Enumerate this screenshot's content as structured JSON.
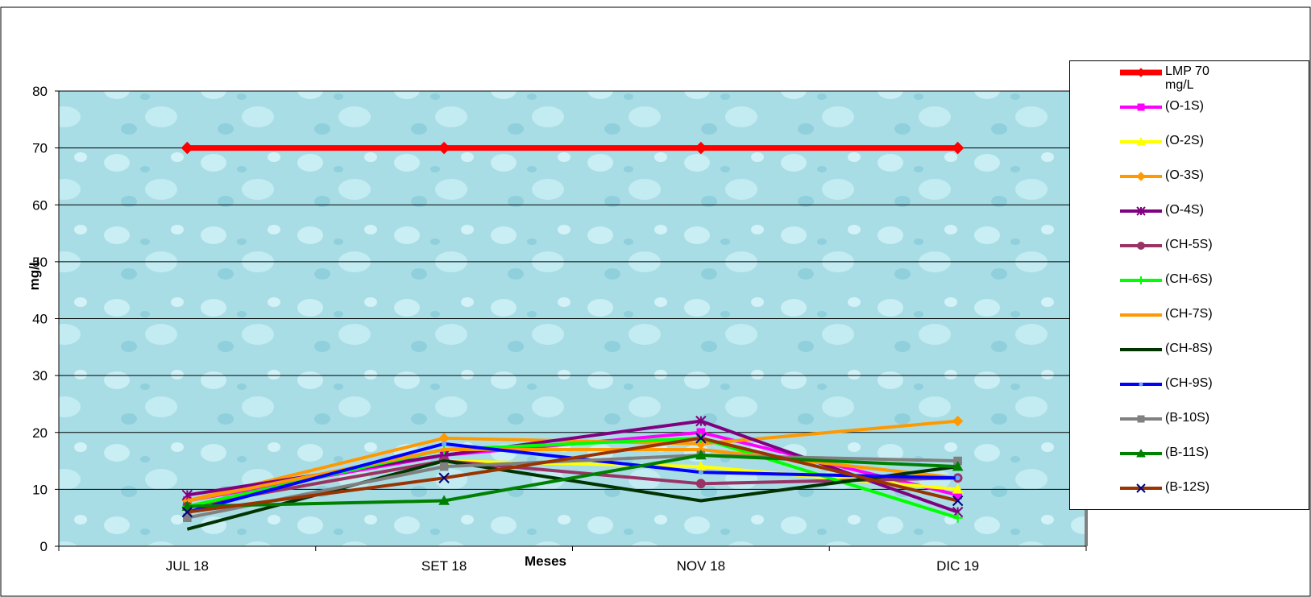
{
  "chart_data": {
    "type": "line",
    "x_label": "Meses",
    "y_label": "mg/L",
    "categories": [
      "JUL 18",
      "SET 18",
      "NOV 18",
      "DIC 19"
    ],
    "ylim": [
      0,
      80
    ],
    "yticks": [
      0,
      10,
      20,
      30,
      40,
      50,
      60,
      70,
      80
    ],
    "grid": true,
    "series": [
      {
        "name": "LMP 70 mg/L",
        "color": "#ff0000",
        "marker": "diamond",
        "width": 7,
        "values": [
          70,
          70,
          70,
          70
        ]
      },
      {
        "name": "(O-1S)",
        "color": "#ff00ff",
        "marker": "square",
        "width": 4,
        "values": [
          8,
          16,
          20,
          9
        ]
      },
      {
        "name": "(O-2S)",
        "color": "#ffff00",
        "marker": "triangle",
        "width": 4,
        "values": [
          7,
          15,
          14,
          10
        ]
      },
      {
        "name": "(O-3S)",
        "color": "#ff9900",
        "marker": "diamond",
        "width": 4,
        "values": [
          8,
          19,
          18,
          22
        ]
      },
      {
        "name": "(O-4S)",
        "color": "#800080",
        "marker": "asterisk",
        "width": 4,
        "values": [
          9,
          16,
          22,
          6
        ]
      },
      {
        "name": "(CH-5S)",
        "color": "#993366",
        "marker": "circle",
        "width": 4,
        "values": [
          7,
          15,
          11,
          12
        ]
      },
      {
        "name": "(CH-6S)",
        "color": "#00ff00",
        "marker": "plus",
        "width": 4,
        "values": [
          7,
          17,
          19,
          5
        ]
      },
      {
        "name": "(CH-7S)",
        "color": "#ff9900",
        "marker": "none",
        "width": 4,
        "values": [
          8,
          17,
          17,
          12
        ]
      },
      {
        "name": "(CH-8S)",
        "color": "#003300",
        "marker": "none",
        "width": 4,
        "values": [
          3,
          15,
          8,
          14
        ]
      },
      {
        "name": "(CH-9S)",
        "color": "#0000ff",
        "marker": "star",
        "width": 4,
        "values": [
          6,
          18,
          13,
          12
        ]
      },
      {
        "name": "(B-10S)",
        "color": "#808080",
        "marker": "square",
        "width": 4,
        "values": [
          5,
          14,
          16,
          15
        ]
      },
      {
        "name": "(B-11S)",
        "color": "#008000",
        "marker": "triangle",
        "width": 4,
        "values": [
          7,
          8,
          16,
          14
        ]
      },
      {
        "name": "(B-12S)",
        "color": "#993300",
        "marker": "x",
        "width": 4,
        "values": [
          6,
          12,
          19,
          8
        ]
      }
    ]
  }
}
